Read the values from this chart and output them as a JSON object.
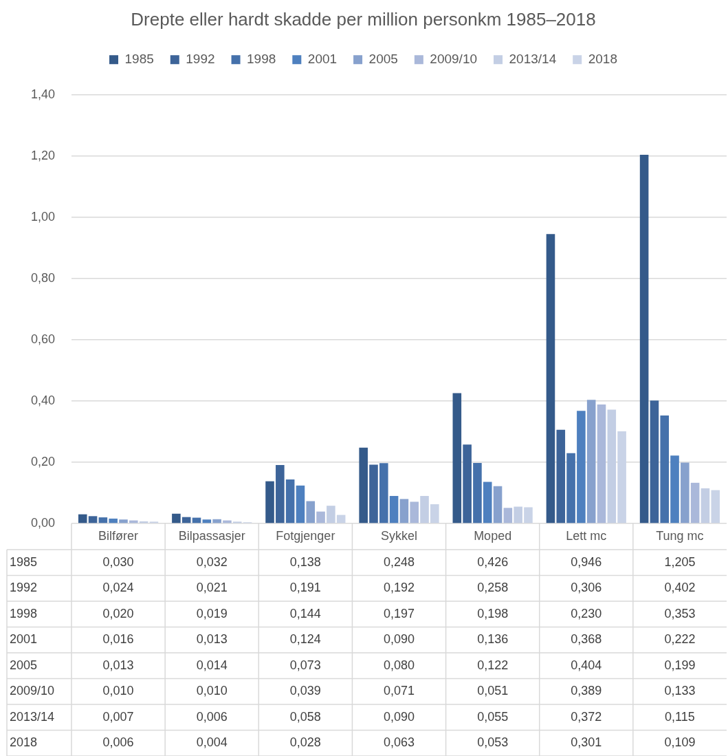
{
  "chart_data": {
    "type": "bar",
    "title": "Drepte eller hardt skadde per million personkm 1985–2018",
    "categories": [
      "Bilfører",
      "Bilpassasjer",
      "Fotgjenger",
      "Sykkel",
      "Moped",
      "Lett mc",
      "Tung mc"
    ],
    "series": [
      {
        "name": "1985",
        "color": "#345a8a",
        "values": [
          0.03,
          0.032,
          0.138,
          0.248,
          0.426,
          0.946,
          1.205
        ],
        "value_labels": [
          "0,030",
          "0,032",
          "0,138",
          "0,248",
          "0,426",
          "0,946",
          "1,205"
        ]
      },
      {
        "name": "1992",
        "color": "#3d6499",
        "values": [
          0.024,
          0.021,
          0.191,
          0.192,
          0.258,
          0.306,
          0.402
        ],
        "value_labels": [
          "0,024",
          "0,021",
          "0,191",
          "0,192",
          "0,258",
          "0,306",
          "0,402"
        ]
      },
      {
        "name": "1998",
        "color": "#4571ab",
        "values": [
          0.02,
          0.019,
          0.144,
          0.197,
          0.198,
          0.23,
          0.353
        ],
        "value_labels": [
          "0,020",
          "0,019",
          "0,144",
          "0,197",
          "0,198",
          "0,230",
          "0,353"
        ]
      },
      {
        "name": "2001",
        "color": "#4e80bf",
        "values": [
          0.016,
          0.013,
          0.124,
          0.09,
          0.136,
          0.368,
          0.222
        ],
        "value_labels": [
          "0,016",
          "0,013",
          "0,124",
          "0,090",
          "0,136",
          "0,368",
          "0,222"
        ]
      },
      {
        "name": "2005",
        "color": "#87a1cd",
        "values": [
          0.013,
          0.014,
          0.073,
          0.08,
          0.122,
          0.404,
          0.199
        ],
        "value_labels": [
          "0,013",
          "0,014",
          "0,073",
          "0,080",
          "0,122",
          "0,404",
          "0,199"
        ]
      },
      {
        "name": "2009/10",
        "color": "#aab8da",
        "values": [
          0.01,
          0.01,
          0.039,
          0.071,
          0.051,
          0.389,
          0.133
        ],
        "value_labels": [
          "0,010",
          "0,010",
          "0,039",
          "0,071",
          "0,051",
          "0,389",
          "0,133"
        ]
      },
      {
        "name": "2013/14",
        "color": "#c3cee4",
        "values": [
          0.007,
          0.006,
          0.058,
          0.09,
          0.055,
          0.372,
          0.115
        ],
        "value_labels": [
          "0,007",
          "0,006",
          "0,058",
          "0,090",
          "0,055",
          "0,372",
          "0,115"
        ]
      },
      {
        "name": "2018",
        "color": "#c9d3e7",
        "values": [
          0.006,
          0.004,
          0.028,
          0.063,
          0.053,
          0.301,
          0.109
        ],
        "value_labels": [
          "0,006",
          "0,004",
          "0,028",
          "0,063",
          "0,053",
          "0,301",
          "0,109"
        ]
      }
    ],
    "ylim": [
      0,
      1.4
    ],
    "yticks": [
      {
        "value": 0,
        "label": "0,00"
      },
      {
        "value": 0.2,
        "label": "0,20"
      },
      {
        "value": 0.4,
        "label": "0,40"
      },
      {
        "value": 0.6,
        "label": "0,60"
      },
      {
        "value": 0.8,
        "label": "0,80"
      },
      {
        "value": 1.0,
        "label": "1,00"
      },
      {
        "value": 1.2,
        "label": "1,20"
      },
      {
        "value": 1.4,
        "label": "1,40"
      }
    ],
    "grid": "y",
    "legend": "top"
  }
}
